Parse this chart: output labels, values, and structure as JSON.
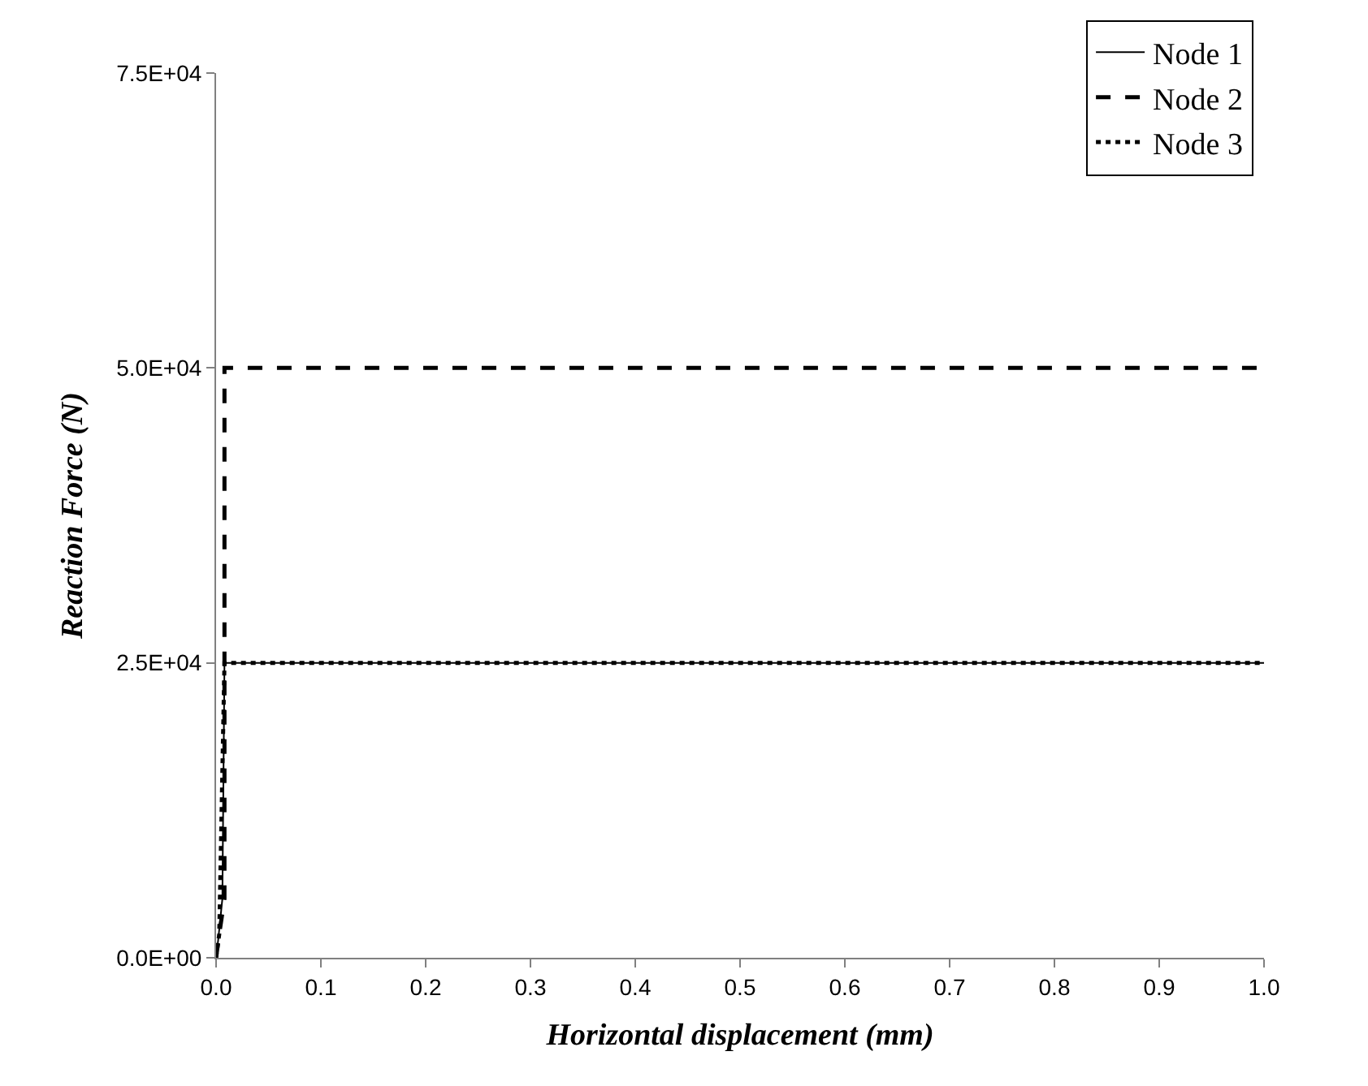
{
  "chart_data": {
    "type": "line",
    "xlabel": "Horizontal displacement (mm)",
    "ylabel": "Reaction Force (N)",
    "xlim": [
      0,
      1
    ],
    "xticks": [
      {
        "value": 0,
        "label": "0.0"
      },
      0.1,
      0.2,
      0.3,
      0.4,
      0.5,
      0.6,
      0.7,
      0.8,
      0.9,
      {
        "value": 1,
        "label": "1.0"
      }
    ],
    "ylim": [
      0,
      75000
    ],
    "yticks": [
      {
        "value": 0,
        "label": "0.0E+00"
      },
      {
        "value": 25000,
        "label": "2.5E+04"
      },
      {
        "value": 50000,
        "label": "5.0E+04"
      },
      {
        "value": 75000,
        "label": "7.5E+04"
      }
    ],
    "legend": "top right",
    "marker": "none",
    "series": [
      {
        "name": "Node 1",
        "color": "#000000",
        "line_style": "solid",
        "x": [
          0,
          0.002,
          0.006,
          0.008,
          1
        ],
        "values": [
          0,
          1500,
          5000,
          25000,
          25000
        ]
      },
      {
        "name": "Node 2",
        "color": "#000000",
        "line_style": "dashed",
        "x": [
          0,
          0.003,
          0.008,
          0.008,
          1
        ],
        "values": [
          0,
          2000,
          5000,
          50000,
          50000
        ]
      },
      {
        "name": "Node 3",
        "color": "#000000",
        "line_style": "dotted",
        "x": [
          0,
          0.003,
          0.008,
          1
        ],
        "values": [
          0,
          2000,
          25000,
          25000
        ]
      }
    ]
  }
}
